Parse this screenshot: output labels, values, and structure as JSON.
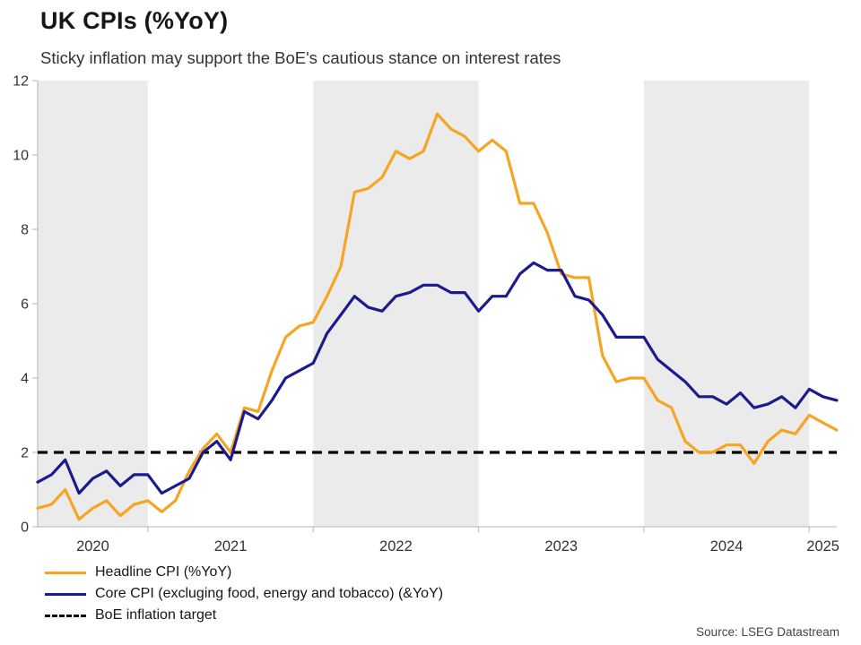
{
  "chart_data": {
    "type": "line",
    "title": "UK CPIs (%YoY)",
    "subtitle": "Sticky inflation may support the BoE's cautious stance on interest rates",
    "source": "Source: LSEG Datastream",
    "ylim": [
      0,
      12
    ],
    "yticks": [
      0,
      2,
      4,
      6,
      8,
      10,
      12
    ],
    "xticks": [
      "2020",
      "2021",
      "2022",
      "2023",
      "2024",
      "2025"
    ],
    "shaded_years": [
      2020,
      2022,
      2024
    ],
    "band_color": "#ebebeb",
    "grid": false,
    "legend_position": "bottom-left",
    "months": [
      "2020-05",
      "2020-06",
      "2020-07",
      "2020-08",
      "2020-09",
      "2020-10",
      "2020-11",
      "2020-12",
      "2021-01",
      "2021-02",
      "2021-03",
      "2021-04",
      "2021-05",
      "2021-06",
      "2021-07",
      "2021-08",
      "2021-09",
      "2021-10",
      "2021-11",
      "2021-12",
      "2022-01",
      "2022-02",
      "2022-03",
      "2022-04",
      "2022-05",
      "2022-06",
      "2022-07",
      "2022-08",
      "2022-09",
      "2022-10",
      "2022-11",
      "2022-12",
      "2023-01",
      "2023-02",
      "2023-03",
      "2023-04",
      "2023-05",
      "2023-06",
      "2023-07",
      "2023-08",
      "2023-09",
      "2023-10",
      "2023-11",
      "2023-12",
      "2024-01",
      "2024-02",
      "2024-03",
      "2024-04",
      "2024-05",
      "2024-06",
      "2024-07",
      "2024-08",
      "2024-09",
      "2024-10",
      "2024-11",
      "2024-12",
      "2025-01",
      "2025-02",
      "2025-03"
    ],
    "series": [
      {
        "name": "Headline CPI (%YoY)",
        "color": "#f6a523",
        "values": [
          0.5,
          0.6,
          1.0,
          0.2,
          0.5,
          0.7,
          0.3,
          0.6,
          0.7,
          0.4,
          0.7,
          1.5,
          2.1,
          2.5,
          2.0,
          3.2,
          3.1,
          4.2,
          5.1,
          5.4,
          5.5,
          6.2,
          7.0,
          9.0,
          9.1,
          9.4,
          10.1,
          9.9,
          10.1,
          11.1,
          10.7,
          10.5,
          10.1,
          10.4,
          10.1,
          8.7,
          8.7,
          7.9,
          6.8,
          6.7,
          6.7,
          4.6,
          3.9,
          4.0,
          4.0,
          3.4,
          3.2,
          2.3,
          2.0,
          2.0,
          2.2,
          2.2,
          1.7,
          2.3,
          2.6,
          2.5,
          3.0,
          2.8,
          2.6
        ]
      },
      {
        "name": "Core CPI (excluging food, energy and tobacco) (&YoY)",
        "color": "#1b1b8e",
        "values": [
          1.2,
          1.4,
          1.8,
          0.9,
          1.3,
          1.5,
          1.1,
          1.4,
          1.4,
          0.9,
          1.1,
          1.3,
          2.0,
          2.3,
          1.8,
          3.1,
          2.9,
          3.4,
          4.0,
          4.2,
          4.4,
          5.2,
          5.7,
          6.2,
          5.9,
          5.8,
          6.2,
          6.3,
          6.5,
          6.5,
          6.3,
          6.3,
          5.8,
          6.2,
          6.2,
          6.8,
          7.1,
          6.9,
          6.9,
          6.2,
          6.1,
          5.7,
          5.1,
          5.1,
          5.1,
          4.5,
          4.2,
          3.9,
          3.5,
          3.5,
          3.3,
          3.6,
          3.2,
          3.3,
          3.5,
          3.2,
          3.7,
          3.5,
          3.4
        ]
      }
    ],
    "target": {
      "label": "BoE inflation target",
      "value": 2,
      "color": "#000000"
    }
  }
}
